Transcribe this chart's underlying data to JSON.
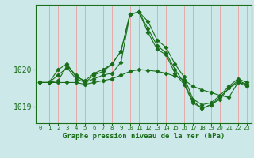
{
  "title": "Graphe pression niveau de la mer (hPa)",
  "background_color": "#cce8e8",
  "grid_color_v": "#e8a0a0",
  "grid_color_h": "#e8a0a0",
  "line_color": "#1a6e1a",
  "x_labels": [
    "0",
    "1",
    "2",
    "3",
    "4",
    "5",
    "6",
    "7",
    "8",
    "9",
    "10",
    "11",
    "12",
    "13",
    "14",
    "15",
    "16",
    "17",
    "18",
    "19",
    "20",
    "21",
    "22",
    "23"
  ],
  "ylim": [
    1018.55,
    1021.75
  ],
  "yticks": [
    1019,
    1020
  ],
  "ylabel_fontsize": 7,
  "xlabel_fontsize": 6.5,
  "xtick_fontsize": 5.2,
  "series": [
    [
      1019.65,
      1019.65,
      1019.85,
      1020.05,
      1019.75,
      1019.65,
      1019.85,
      1019.95,
      1020.15,
      1020.5,
      1021.5,
      1021.55,
      1021.3,
      1020.8,
      1020.6,
      1020.15,
      1019.8,
      1019.2,
      1019.05,
      1019.1,
      1019.3,
      1019.55,
      1019.75,
      1019.65
    ],
    [
      1019.65,
      1019.65,
      1020.0,
      1020.15,
      1019.8,
      1019.7,
      1019.9,
      1020.0,
      1020.15,
      1020.5,
      1021.5,
      1021.55,
      1021.1,
      1020.65,
      1020.45,
      1020.0,
      1019.65,
      1019.15,
      1018.95,
      1019.05,
      1019.25,
      1019.5,
      1019.7,
      1019.6
    ],
    [
      1019.65,
      1019.65,
      1019.65,
      1019.65,
      1019.65,
      1019.6,
      1019.65,
      1019.7,
      1019.75,
      1019.85,
      1019.95,
      1020.0,
      1019.98,
      1019.95,
      1019.9,
      1019.82,
      1019.72,
      1019.55,
      1019.45,
      1019.38,
      1019.3,
      1019.25,
      1019.65,
      1019.6
    ],
    [
      1019.65,
      1019.65,
      1019.7,
      1020.1,
      1019.85,
      1019.65,
      1019.75,
      1019.85,
      1019.9,
      1020.2,
      1021.5,
      1021.55,
      1021.0,
      1020.55,
      1020.4,
      1019.9,
      1019.6,
      1019.1,
      1018.95,
      1019.05,
      1019.2,
      1019.5,
      1019.65,
      1019.55
    ]
  ]
}
